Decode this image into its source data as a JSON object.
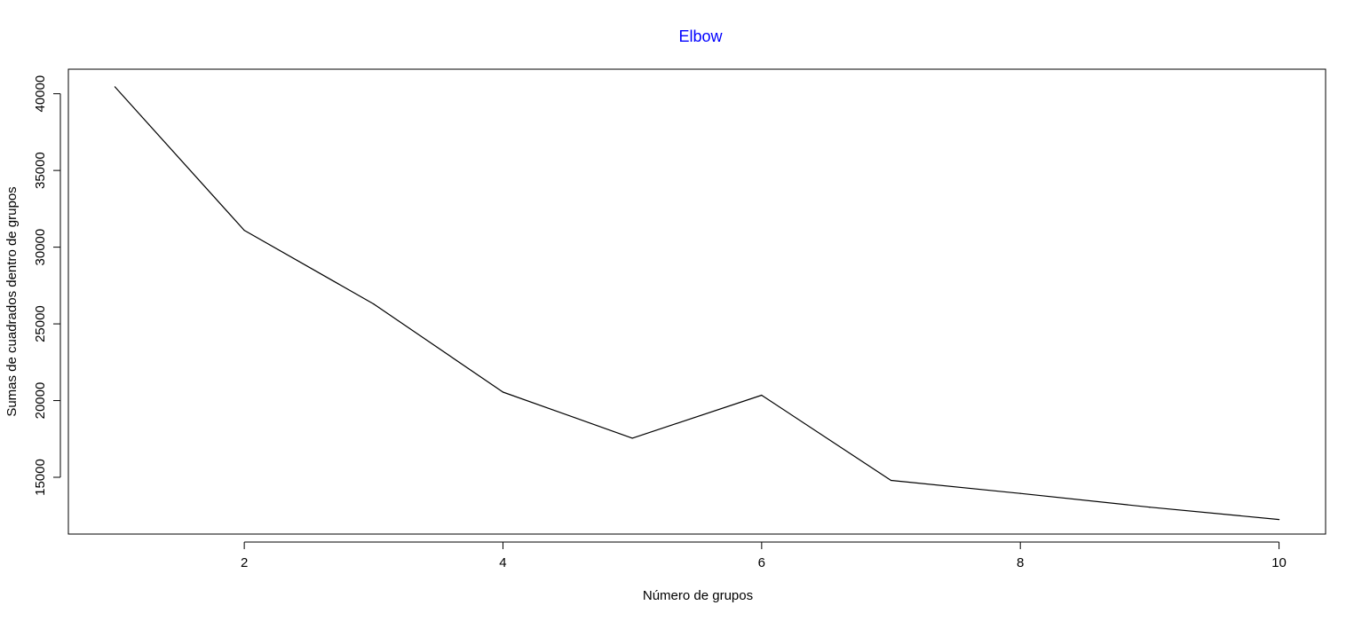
{
  "chart_data": {
    "type": "line",
    "title": "Elbow",
    "xlabel": "Número de grupos",
    "ylabel": "Sumas de cuadrados dentro de grupos",
    "x": [
      1,
      2,
      3,
      4,
      5,
      6,
      7,
      8,
      9,
      10
    ],
    "series": [
      {
        "values": [
          40450,
          31100,
          26300,
          20550,
          17550,
          20350,
          14800,
          13950,
          13050,
          12250
        ]
      }
    ],
    "xlim": [
      0.64,
      10.36
    ],
    "ylim": [
      11300,
      41600
    ],
    "xticks": [
      2,
      4,
      6,
      8,
      10
    ],
    "xtick_labels": [
      "2",
      "4",
      "6",
      "8",
      "10"
    ],
    "yticks": [
      15000,
      20000,
      25000,
      30000,
      35000,
      40000
    ],
    "ytick_labels": [
      "15000",
      "20000",
      "25000",
      "30000",
      "35000",
      "40000"
    ],
    "grid": false,
    "colors": {
      "title": "#0000ff",
      "line": "#000000",
      "axis": "#000000"
    }
  }
}
